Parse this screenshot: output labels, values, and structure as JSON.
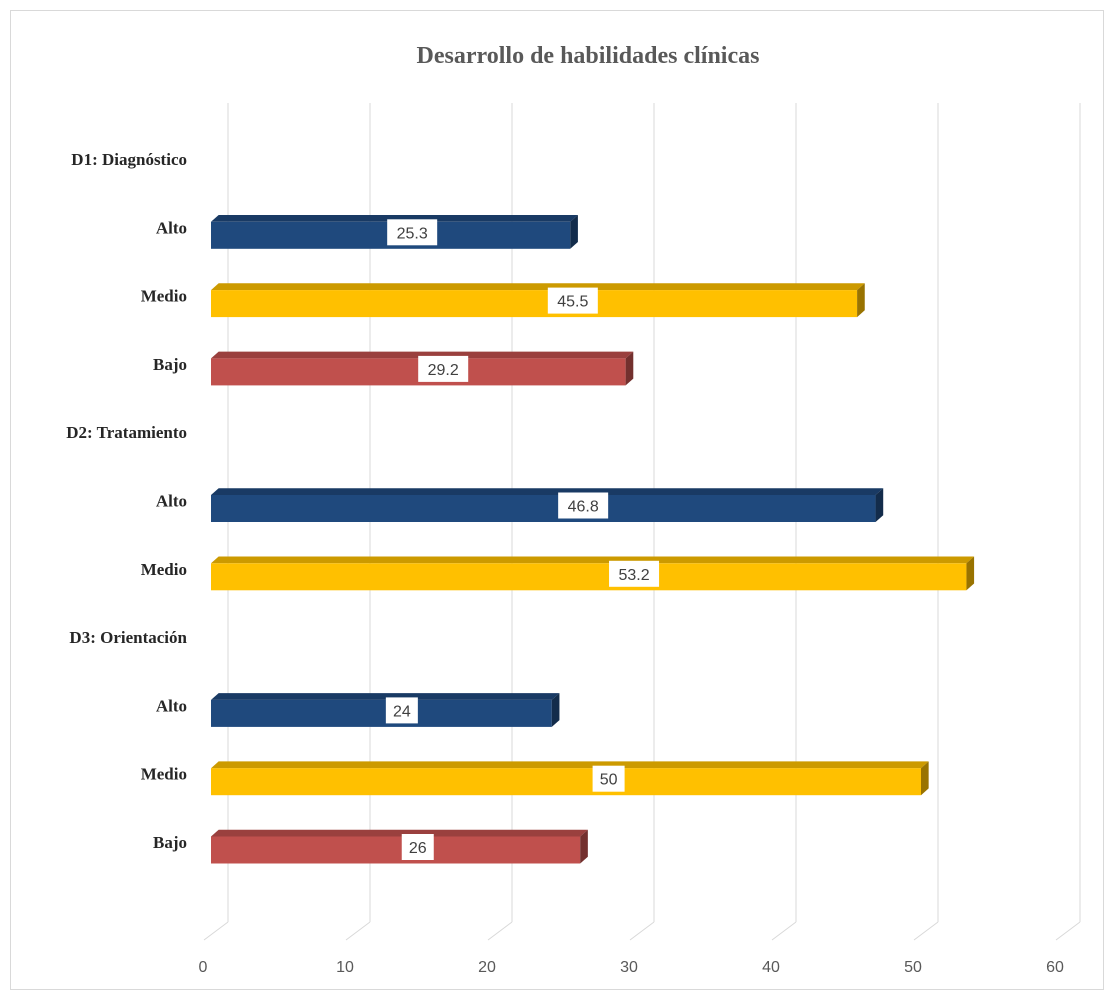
{
  "chart_data": {
    "type": "bar",
    "orientation": "horizontal",
    "style": "3d",
    "title": "Desarrollo de habilidades clínicas",
    "xlabel": "",
    "ylabel": "",
    "xlim": [
      0,
      60
    ],
    "x_ticks": [
      "0",
      "10",
      "20",
      "30",
      "40",
      "50",
      "60"
    ],
    "grid": true,
    "legend": "none",
    "colors": {
      "Alto": "#1f497d",
      "Medio": "#ffc000",
      "Bajo": "#c0504d"
    },
    "rows": [
      {
        "label": "D1: Diagnóstico",
        "header": true
      },
      {
        "label": "Alto",
        "value": 25.3,
        "value_label": "25.3",
        "level": "Alto"
      },
      {
        "label": "Medio",
        "value": 45.5,
        "value_label": "45.5",
        "level": "Medio"
      },
      {
        "label": "Bajo",
        "value": 29.2,
        "value_label": "29.2",
        "level": "Bajo"
      },
      {
        "label": "D2: Tratamiento",
        "header": true
      },
      {
        "label": "Alto",
        "value": 46.8,
        "value_label": "46.8",
        "level": "Alto"
      },
      {
        "label": "Medio",
        "value": 53.2,
        "value_label": "53.2",
        "level": "Medio"
      },
      {
        "label": "D3: Orientación",
        "header": true
      },
      {
        "label": "Alto",
        "value": 24,
        "value_label": "24",
        "level": "Alto"
      },
      {
        "label": "Medio",
        "value": 50,
        "value_label": "50",
        "level": "Medio"
      },
      {
        "label": "Bajo",
        "value": 26,
        "value_label": "26",
        "level": "Bajo"
      }
    ]
  }
}
